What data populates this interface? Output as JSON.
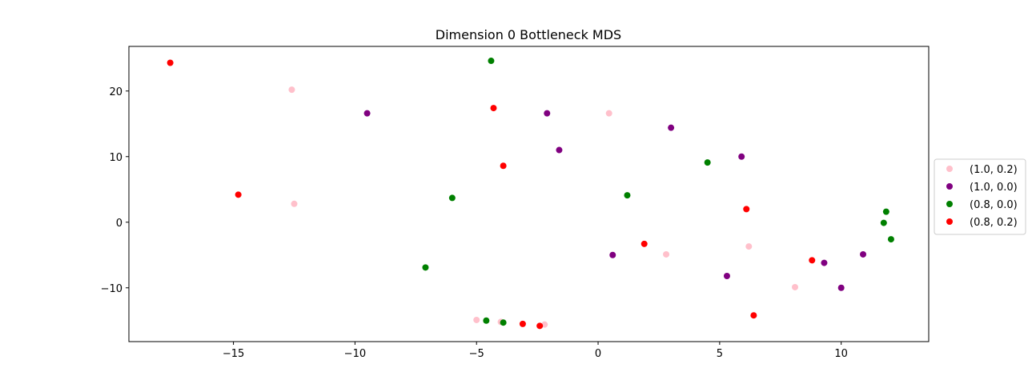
{
  "chart_data": {
    "type": "scatter",
    "title": "Dimension 0 Bottleneck MDS",
    "xlabel": "",
    "ylabel": "",
    "xlim": [
      -19.3,
      13.6
    ],
    "ylim": [
      -18.2,
      26.8
    ],
    "xticks": [
      -15,
      -10,
      -5,
      0,
      5,
      10
    ],
    "yticks": [
      -10,
      0,
      10,
      20
    ],
    "xtick_labels": [
      "−15",
      "−10",
      "−5",
      "0",
      "5",
      "10"
    ],
    "ytick_labels": [
      "−10",
      "0",
      "10",
      "20"
    ],
    "grid": false,
    "legend_position": "outside right, vertically centered",
    "series": [
      {
        "name": "(1.0, 0.2)",
        "color": "#ffc0cb",
        "points": [
          [
            -12.6,
            20.2
          ],
          [
            -12.5,
            2.8
          ],
          [
            0.45,
            16.6
          ],
          [
            2.8,
            -4.9
          ],
          [
            6.2,
            -3.7
          ],
          [
            8.1,
            -9.9
          ],
          [
            -5.0,
            -14.9
          ],
          [
            -4.0,
            -15.2
          ],
          [
            -2.2,
            -15.6
          ]
        ]
      },
      {
        "name": "(1.0, 0.0)",
        "color": "#800080",
        "points": [
          [
            -9.5,
            16.6
          ],
          [
            -2.1,
            16.6
          ],
          [
            -1.6,
            11.0
          ],
          [
            3.0,
            14.4
          ],
          [
            5.9,
            10.0
          ],
          [
            0.6,
            -5.0
          ],
          [
            5.3,
            -8.2
          ],
          [
            9.3,
            -6.2
          ],
          [
            10.9,
            -4.9
          ],
          [
            10.0,
            -10.0
          ]
        ]
      },
      {
        "name": "(0.8, 0.0)",
        "color": "#008000",
        "points": [
          [
            -4.4,
            24.6
          ],
          [
            -6.0,
            3.7
          ],
          [
            -7.1,
            -6.9
          ],
          [
            1.2,
            4.1
          ],
          [
            4.5,
            9.1
          ],
          [
            11.85,
            1.6
          ],
          [
            11.75,
            -0.1
          ],
          [
            12.05,
            -2.6
          ],
          [
            -4.6,
            -15.0
          ],
          [
            -3.9,
            -15.3
          ]
        ]
      },
      {
        "name": "(0.8, 0.2)",
        "color": "#ff0000",
        "points": [
          [
            -17.6,
            24.3
          ],
          [
            -14.8,
            4.2
          ],
          [
            -4.3,
            17.4
          ],
          [
            -3.9,
            8.6
          ],
          [
            1.9,
            -3.3
          ],
          [
            6.1,
            2.0
          ],
          [
            8.8,
            -5.8
          ],
          [
            6.4,
            -14.2
          ],
          [
            -3.1,
            -15.5
          ],
          [
            -2.4,
            -15.8
          ]
        ]
      }
    ]
  }
}
